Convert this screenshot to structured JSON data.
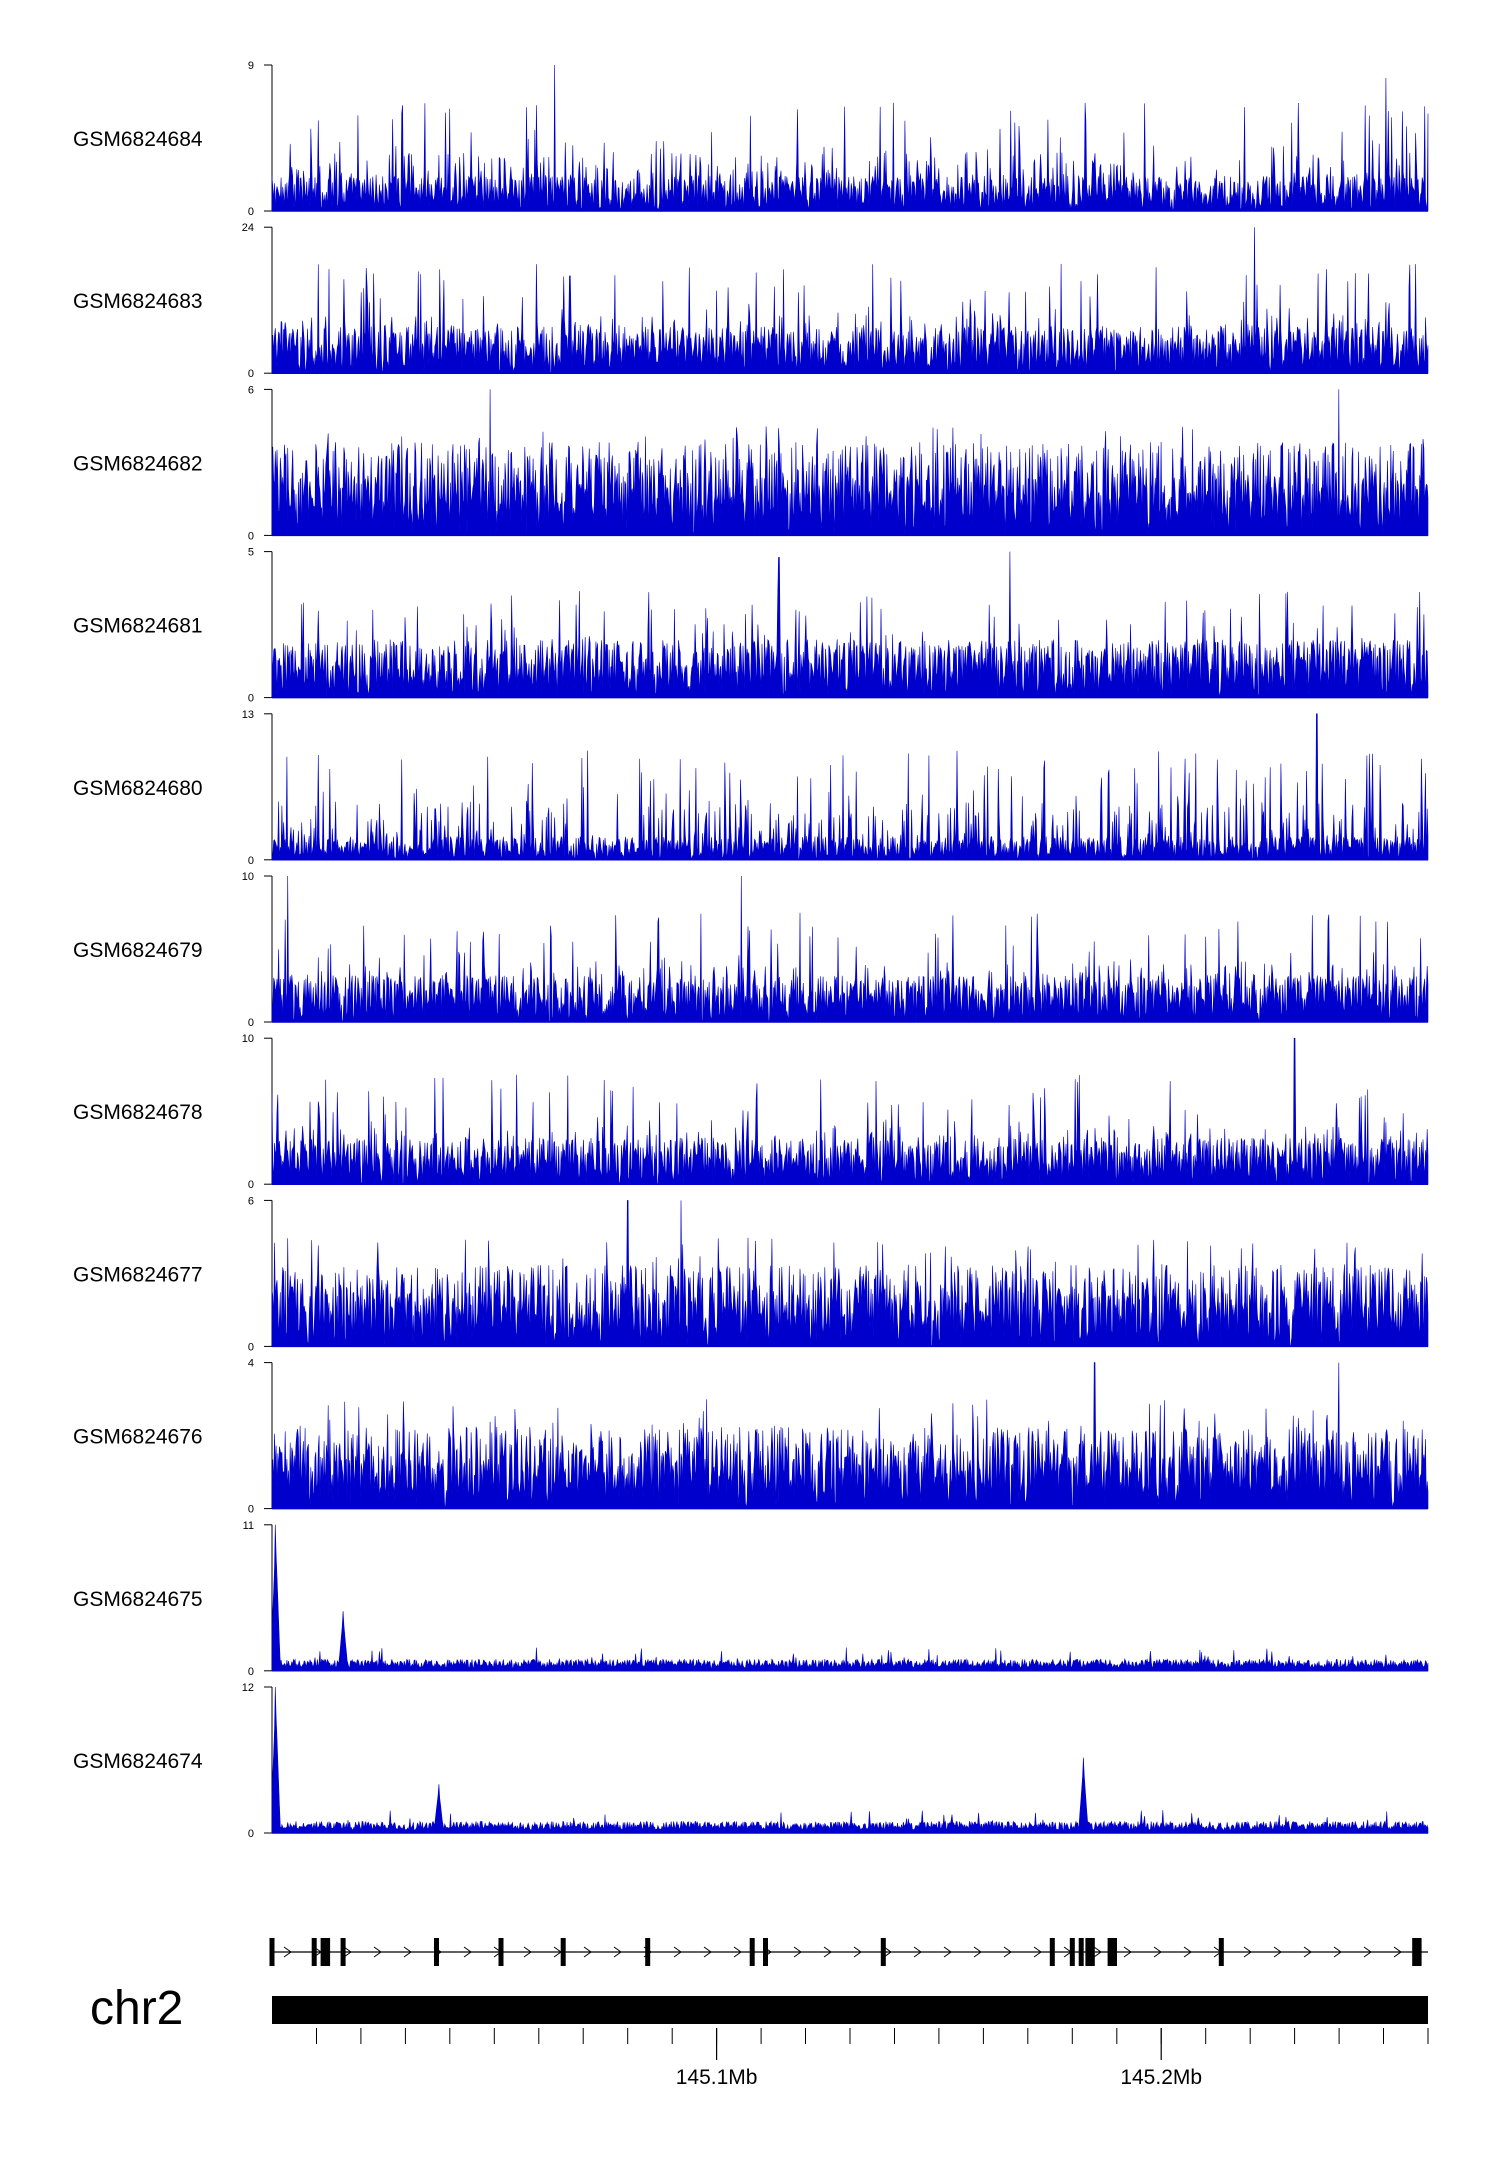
{
  "chart_data": {
    "type": "area",
    "chromosome": "chr2",
    "color": "#0000CC",
    "axis_labels": [
      {
        "text": "145.1Mb",
        "value": 145.1
      },
      {
        "text": "145.2Mb",
        "value": 145.2
      }
    ],
    "xlim": [
      145.0,
      145.26
    ],
    "tracks": [
      {
        "name": "GSM6824684",
        "ymax": 9,
        "ymin": 0,
        "base": 0.15,
        "peaks": [
          [
            145.0635,
            9
          ],
          [
            145.2505,
            8.2
          ]
        ]
      },
      {
        "name": "GSM6824683",
        "ymax": 24,
        "ymin": 0,
        "base": 0.2,
        "peaks": [
          [
            145.221,
            24
          ],
          [
            145.067,
            16
          ]
        ]
      },
      {
        "name": "GSM6824682",
        "ymax": 6,
        "ymin": 0,
        "base": 0.4,
        "peaks": [
          [
            145.049,
            6
          ],
          [
            145.24,
            6
          ]
        ]
      },
      {
        "name": "GSM6824681",
        "ymax": 5,
        "ymin": 0,
        "base": 0.25,
        "peaks": [
          [
            145.114,
            4.8
          ],
          [
            145.166,
            5
          ]
        ]
      },
      {
        "name": "GSM6824680",
        "ymax": 13,
        "ymin": 0,
        "base": 0.1,
        "peaks": [
          [
            145.235,
            13
          ],
          [
            145.2585,
            9
          ]
        ]
      },
      {
        "name": "GSM6824679",
        "ymax": 10,
        "ymin": 0,
        "base": 0.2,
        "peaks": [
          [
            145.0035,
            10
          ],
          [
            145.1055,
            10
          ]
        ]
      },
      {
        "name": "GSM6824678",
        "ymax": 10,
        "ymin": 0,
        "base": 0.2,
        "peaks": [
          [
            145.23,
            10
          ],
          [
            145.055,
            7.5
          ]
        ]
      },
      {
        "name": "GSM6824677",
        "ymax": 6,
        "ymin": 0,
        "base": 0.35,
        "peaks": [
          [
            145.08,
            6
          ],
          [
            145.092,
            6
          ]
        ]
      },
      {
        "name": "GSM6824676",
        "ymax": 4,
        "ymin": 0,
        "base": 0.35,
        "peaks": [
          [
            145.185,
            4
          ],
          [
            145.24,
            4
          ]
        ]
      },
      {
        "name": "GSM6824675",
        "ymax": 11,
        "ymin": 0,
        "base": 0.03,
        "peaks": [
          [
            145.0008,
            11
          ],
          [
            145.016,
            4.5
          ]
        ]
      },
      {
        "name": "GSM6824674",
        "ymax": 12,
        "ymin": 0,
        "base": 0.03,
        "peaks": [
          [
            145.0008,
            12
          ],
          [
            145.1825,
            6.2
          ],
          [
            145.0375,
            4
          ]
        ]
      }
    ],
    "genes": {
      "strand": "+",
      "exons": [
        145.0,
        145.0095,
        145.0115,
        145.0125,
        145.016,
        145.037,
        145.0515,
        145.0655,
        145.0845,
        145.108,
        145.111,
        145.1375,
        145.1755,
        145.18,
        145.182,
        145.1835,
        145.1845,
        145.1885,
        145.1895,
        145.2135,
        145.257,
        145.258
      ]
    }
  }
}
